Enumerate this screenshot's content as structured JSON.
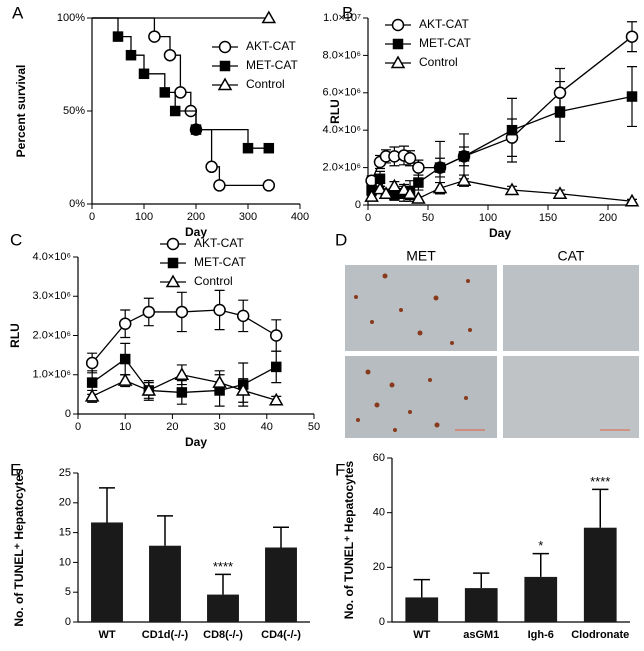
{
  "chart_data": [
    {
      "type": "step",
      "panel": "A",
      "xlabel": "Day",
      "ylabel": "Percent survival",
      "xlim": [
        0,
        400
      ],
      "xticks": [
        0,
        100,
        200,
        300,
        400
      ],
      "ylim": [
        0,
        100
      ],
      "yticks": [
        {
          "value": 0,
          "label": "0%"
        },
        {
          "value": 50,
          "label": "50%"
        },
        {
          "value": 100,
          "label": "100%"
        }
      ],
      "series": [
        {
          "name": "AKT-CAT",
          "marker": "circle-open",
          "color": "#000000",
          "x": [
            0,
            120,
            150,
            170,
            190,
            200,
            230,
            245,
            340
          ],
          "values": [
            100,
            90,
            80,
            60,
            50,
            40,
            20,
            10,
            10
          ]
        },
        {
          "name": "MET-CAT",
          "marker": "square",
          "color": "#000000",
          "x": [
            0,
            50,
            75,
            100,
            140,
            160,
            200,
            300,
            340
          ],
          "values": [
            100,
            90,
            80,
            70,
            60,
            50,
            40,
            30,
            30
          ]
        },
        {
          "name": "Control",
          "marker": "triangle-open",
          "color": "#000000",
          "x": [
            0,
            340
          ],
          "values": [
            100,
            100
          ]
        }
      ]
    },
    {
      "type": "line",
      "panel": "B",
      "xlabel": "Day",
      "ylabel": "RLU",
      "xlim": [
        0,
        220
      ],
      "xticks": [
        0,
        50,
        100,
        150,
        200
      ],
      "ylim": [
        0,
        10000000
      ],
      "yticks": [
        0,
        {
          "value": 2000000,
          "label": "2.0×10⁶"
        },
        {
          "value": 4000000,
          "label": "4.0×10⁶"
        },
        {
          "value": 6000000,
          "label": "6.0×10⁶"
        },
        {
          "value": 8000000,
          "label": "8.0×10⁶"
        },
        {
          "value": 10000000,
          "label": "1.0×10⁷"
        }
      ],
      "x": [
        3,
        10,
        15,
        22,
        30,
        35,
        42,
        60,
        80,
        120,
        160,
        220
      ],
      "series": [
        {
          "name": "AKT-CAT",
          "marker": "circle-open",
          "color": "#000000",
          "values": [
            1300000,
            2300000,
            2600000,
            2600000,
            2650000,
            2500000,
            2000000,
            2000000,
            2600000,
            3600000,
            6000000,
            9000000
          ],
          "errors": [
            250000,
            350000,
            350000,
            500000,
            500000,
            400000,
            400000,
            500000,
            500000,
            1000000,
            1300000,
            800000
          ]
        },
        {
          "name": "MET-CAT",
          "marker": "square",
          "color": "#000000",
          "values": [
            800000,
            1400000,
            600000,
            550000,
            600000,
            750000,
            1200000,
            2000000,
            2600000,
            4000000,
            5000000,
            5800000
          ],
          "errors": [
            300000,
            400000,
            250000,
            300000,
            400000,
            550000,
            400000,
            1400000,
            1200000,
            1700000,
            1600000,
            1600000
          ]
        },
        {
          "name": "Control",
          "marker": "triangle-open",
          "color": "#000000",
          "values": [
            450000,
            850000,
            600000,
            1000000,
            800000,
            600000,
            350000,
            900000,
            1300000,
            800000,
            600000,
            200000
          ],
          "errors": [
            150000,
            150000,
            200000,
            250000,
            300000,
            300000,
            100000,
            300000,
            300000,
            200000,
            200000,
            100000
          ]
        }
      ]
    },
    {
      "type": "line",
      "panel": "C",
      "xlabel": "Day",
      "ylabel": "RLU",
      "xlim": [
        0,
        50
      ],
      "xticks": [
        0,
        10,
        20,
        30,
        40,
        50
      ],
      "ylim": [
        0,
        4000000
      ],
      "yticks": [
        0,
        {
          "value": 1000000,
          "label": "1.0×10⁶"
        },
        {
          "value": 2000000,
          "label": "2.0×10⁶"
        },
        {
          "value": 3000000,
          "label": "3.0×10⁶"
        },
        {
          "value": 4000000,
          "label": "4.0×10⁶"
        }
      ],
      "x": [
        3,
        10,
        15,
        22,
        30,
        35,
        42
      ],
      "series": [
        {
          "name": "AKT-CAT",
          "marker": "circle-open",
          "color": "#000000",
          "values": [
            1300000,
            2300000,
            2600000,
            2600000,
            2650000,
            2500000,
            2000000
          ],
          "errors": [
            250000,
            350000,
            350000,
            500000,
            500000,
            400000,
            400000
          ]
        },
        {
          "name": "MET-CAT",
          "marker": "square",
          "color": "#000000",
          "values": [
            800000,
            1400000,
            600000,
            550000,
            600000,
            750000,
            1200000
          ],
          "errors": [
            300000,
            400000,
            250000,
            300000,
            400000,
            550000,
            400000
          ]
        },
        {
          "name": "Control",
          "marker": "triangle-open",
          "color": "#000000",
          "values": [
            450000,
            850000,
            600000,
            1000000,
            800000,
            600000,
            350000
          ],
          "errors": [
            150000,
            150000,
            200000,
            250000,
            300000,
            300000,
            100000
          ]
        }
      ]
    },
    {
      "type": "image",
      "panel": "D",
      "columns": [
        "MET",
        "CAT"
      ]
    },
    {
      "type": "bar",
      "panel": "E",
      "ylabel": "No. of TUNEL⁺ Hepatocytes",
      "color": "#1a1a1a",
      "categories": [
        "WT",
        "CD1d(-/-)",
        "CD8(-/-)",
        "CD4(-/-)"
      ],
      "values": [
        16.7,
        12.8,
        4.6,
        12.5
      ],
      "errors": [
        5.8,
        5.0,
        3.4,
        3.4
      ],
      "annotations": [
        null,
        null,
        "****",
        null
      ],
      "ylim": [
        0,
        25
      ],
      "yticks": [
        0,
        5,
        10,
        15,
        20,
        25
      ]
    },
    {
      "type": "bar",
      "panel": "F",
      "ylabel": "No. of TUNEL⁺ Hepatocytes",
      "color": "#1a1a1a",
      "categories": [
        "WT",
        "asGM1",
        "Igh-6",
        "Clodronate"
      ],
      "values": [
        9,
        12.4,
        16.5,
        34.5
      ],
      "errors": [
        6.5,
        5.5,
        8.5,
        14
      ],
      "annotations": [
        null,
        null,
        "*",
        "****"
      ],
      "ylim": [
        0,
        60
      ],
      "yticks": [
        0,
        20,
        40,
        60
      ]
    }
  ]
}
